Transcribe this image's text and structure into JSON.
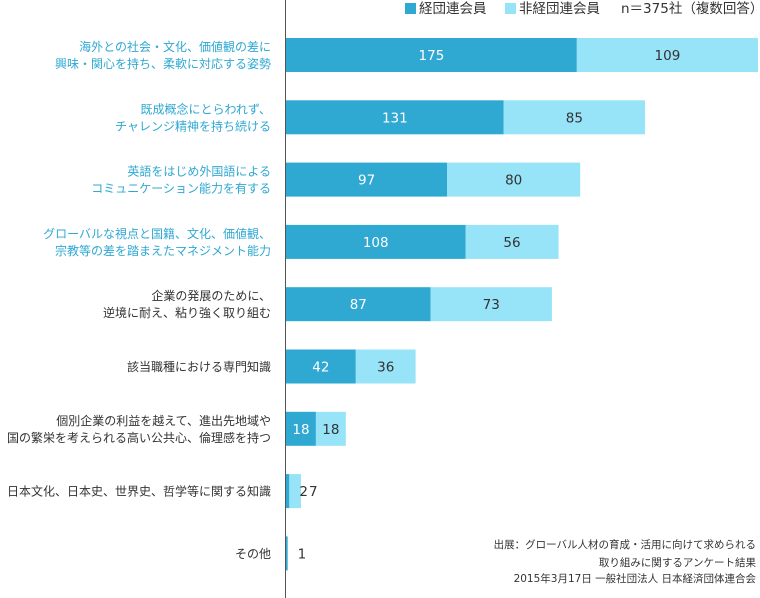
{
  "chart_data": {
    "type": "bar",
    "orientation": "horizontal",
    "stacked": true,
    "legend": {
      "position": "top-right",
      "items": [
        {
          "name": "経団連会員",
          "color": "#2fa8d2"
        },
        {
          "name": "非経団連会員",
          "color": "#97e3f8"
        }
      ],
      "note": "n＝375社（複数回答）"
    },
    "categories": [
      {
        "lines": [
          "海外との社会・文化、価値観の差に",
          "興味・関心を持ち、柔軟に対応する姿勢"
        ],
        "color": "#2fa8d2"
      },
      {
        "lines": [
          "既成概念にとらわれず、",
          "チャレンジ精神を持ち続ける"
        ],
        "color": "#2fa8d2"
      },
      {
        "lines": [
          "英語をはじめ外国語による",
          "コミュニケーション能力を有する"
        ],
        "color": "#2fa8d2"
      },
      {
        "lines": [
          "グローバルな視点と国籍、文化、価値観、",
          "宗教等の差を踏まえたマネジメント能力"
        ],
        "color": "#2fa8d2"
      },
      {
        "lines": [
          "企業の発展のために、",
          "逆境に耐え、粘り強く取り組む"
        ],
        "color": "#333333"
      },
      {
        "lines": [
          "該当職種における専門知識"
        ],
        "color": "#333333"
      },
      {
        "lines": [
          "個別企業の利益を越えて、進出先地域や",
          "国の繁栄を考えられる高い公共心、倫理感を持つ"
        ],
        "color": "#333333"
      },
      {
        "lines": [
          "日本文化、日本史、世界史、哲学等に関する知識"
        ],
        "color": "#333333"
      },
      {
        "lines": [
          "その他"
        ],
        "color": "#333333"
      }
    ],
    "series": [
      {
        "name": "経団連会員",
        "values": [
          175,
          131,
          97,
          108,
          87,
          42,
          18,
          2,
          1
        ]
      },
      {
        "name": "非経団連会員",
        "values": [
          109,
          85,
          80,
          56,
          73,
          36,
          18,
          7,
          0
        ]
      }
    ],
    "value_labels": {
      "series0": [
        "175",
        "131",
        "97",
        "108",
        "87",
        "42",
        "18",
        "2",
        "1"
      ],
      "series1": [
        "109",
        "85",
        "80",
        "56",
        "73",
        "36",
        "18",
        "7",
        ""
      ]
    },
    "xlim": [
      0,
      284
    ],
    "grid": false
  },
  "source": {
    "lines": [
      "出展：グローバル人材の育成・活用に向けて求められる",
      "取り組みに関するアンケート結果",
      "2015年3月17日 一般社団法人 日本経済団体連合会"
    ]
  }
}
